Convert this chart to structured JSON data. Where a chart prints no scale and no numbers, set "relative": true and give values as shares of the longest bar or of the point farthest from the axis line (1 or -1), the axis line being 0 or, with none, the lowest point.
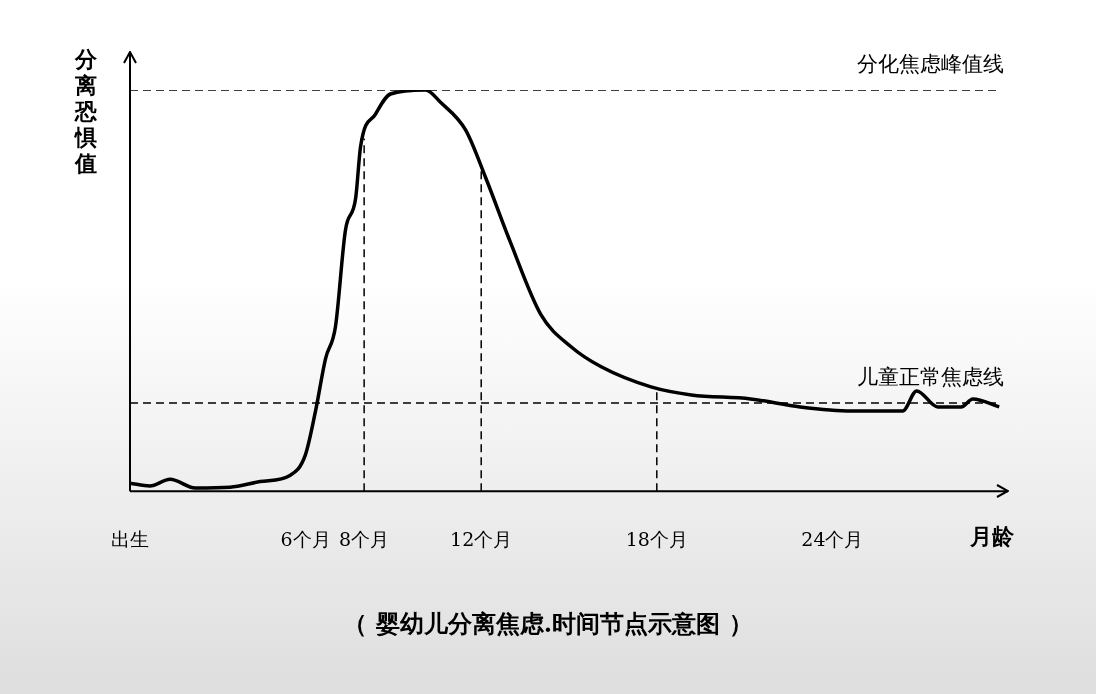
{
  "chart_data": {
    "type": "line",
    "relative": true,
    "title": "（ 婴幼儿分离焦虑.时间节点示意图 ）",
    "xlabel": "月龄",
    "ylabel": "分离恐惧值",
    "xlim": [
      0,
      30
    ],
    "xticks": [
      {
        "value": 0,
        "label": "出生"
      },
      {
        "value": 6,
        "label": "6个月"
      },
      {
        "value": 8,
        "label": "8个月"
      },
      {
        "value": 12,
        "label": "12个月"
      },
      {
        "value": 18,
        "label": "18个月"
      },
      {
        "value": 24,
        "label": "24个月"
      }
    ],
    "tick_labels": "x",
    "grid": false,
    "legend": false,
    "marker": "none",
    "line_style": "solid",
    "series": [
      {
        "color": "#000000",
        "x": [
          0,
          0.68,
          1.37,
          2.23,
          3.42,
          4.45,
          5.48,
          5.99,
          6.34,
          6.68,
          7.02,
          7.36,
          7.71,
          7.88,
          8.39,
          8.9,
          10.1,
          10.6,
          11.47,
          12.16,
          13.0,
          14.04,
          15.07,
          16.1,
          17.8,
          19.18,
          21.2,
          22.9,
          24.66,
          26.4,
          26.88,
          27.6,
          28.4,
          28.8,
          29.7
        ],
        "values": [
          0.02,
          0.013,
          0.03,
          0.008,
          0.01,
          0.024,
          0.04,
          0.09,
          0.2,
          0.33,
          0.41,
          0.65,
          0.73,
          0.86,
          0.94,
          0.99,
          1.0,
          0.97,
          0.9,
          0.78,
          0.62,
          0.44,
          0.36,
          0.31,
          0.26,
          0.24,
          0.23,
          0.21,
          0.2,
          0.2,
          0.25,
          0.21,
          0.21,
          0.23,
          0.21
        ]
      },
      {
        "name": "分化焦虑峰值线",
        "color": "#000000",
        "line_style": "dashed",
        "x": [
          0,
          29.7
        ],
        "values": [
          1.0,
          1.0
        ]
      },
      {
        "name": "儿童正常焦虑线",
        "color": "#000000",
        "line_style": "dashed",
        "x": [
          0,
          29.7
        ],
        "values": [
          0.22,
          0.22
        ]
      }
    ],
    "ref_lines": [
      {
        "axis": "x",
        "value": 8,
        "line_style": "dashed"
      },
      {
        "axis": "x",
        "value": 12,
        "line_style": "dashed"
      },
      {
        "axis": "x",
        "value": 18,
        "line_style": "dashed"
      }
    ]
  }
}
